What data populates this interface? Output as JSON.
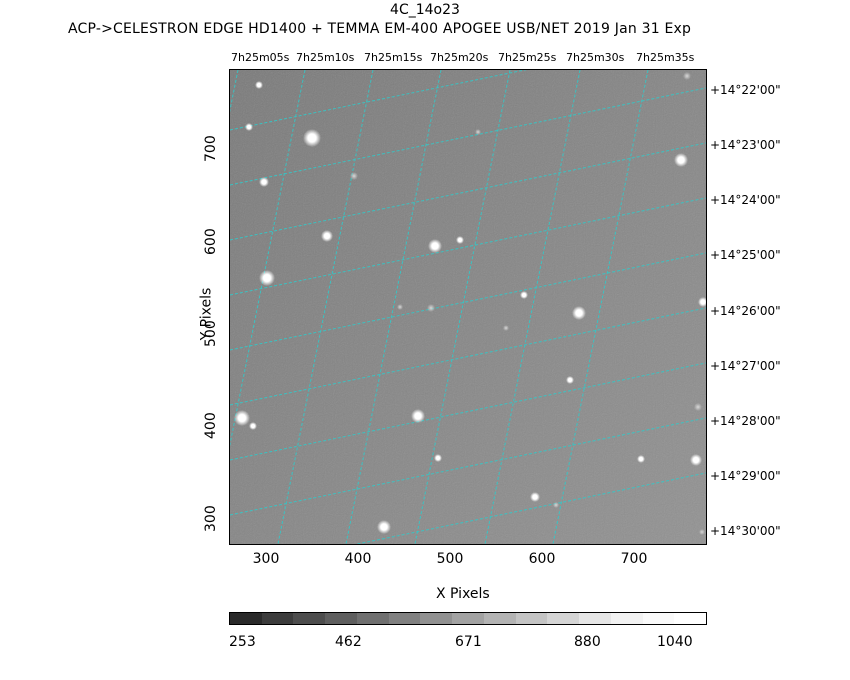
{
  "header": {
    "title": "4C_14o23",
    "subtitle": "ACP->CELESTRON EDGE HD1400 + TEMMA EM-400 APOGEE USB/NET   2019 Jan 31    Exp"
  },
  "axes": {
    "xlabel": "X Pixels",
    "ylabel": "Y Pixels",
    "x_ticks": [
      "300",
      "400",
      "500",
      "600",
      "700"
    ],
    "y_ticks": [
      "300",
      "400",
      "500",
      "600",
      "700"
    ],
    "ra_labels": [
      "7h25m05s",
      "7h25m10s",
      "7h25m15s",
      "7h25m20s",
      "7h25m25s",
      "7h25m30s",
      "7h25m35s"
    ],
    "dec_labels": [
      "+14°22'00\"",
      "+14°23'00\"",
      "+14°24'00\"",
      "+14°25'00\"",
      "+14°26'00\"",
      "+14°27'00\"",
      "+14°28'00\"",
      "+14°29'00\"",
      "+14°30'00\""
    ]
  },
  "colorbar": {
    "labels": [
      "253",
      "462",
      "671",
      "880",
      "1040"
    ]
  },
  "colors": {
    "grid": "#33c8c8",
    "background": "#8a8a8a"
  }
}
